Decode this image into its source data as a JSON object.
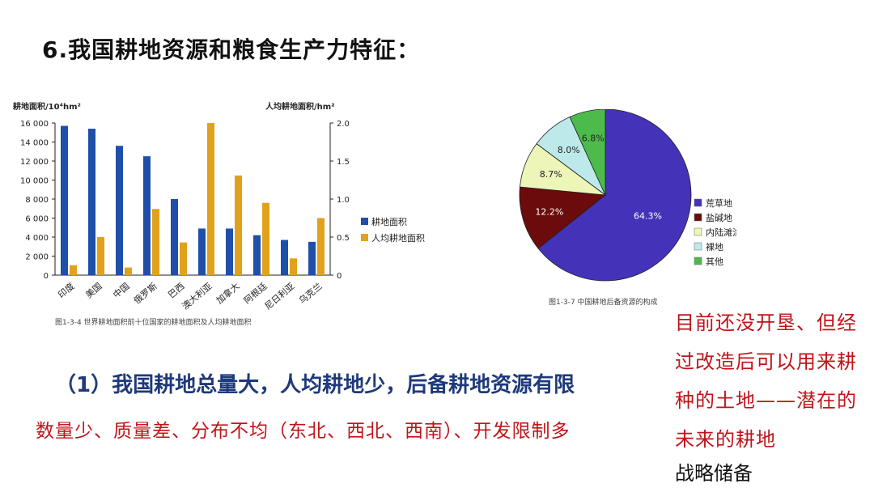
{
  "title": "6.我国耕地资源和粮食生产力特征：",
  "point1": "（1）我国耕地总量大，人均耕地少，后备耕地资源有限",
  "point1_detail": "数量少、质量差、分布不均（东北、西北、西南）、开发限制多",
  "side_note": "目前还没开垦、但经过改造后可以用来耕种的土地——潜在的未来的耕地",
  "side_note_sub": "战略储备",
  "colors": {
    "bar_area": "#1f4fa8",
    "bar_per_capita": "#e0a21c",
    "pie_wasteland": "#4433b8",
    "pie_saline": "#6b0b0b",
    "pie_inland": "#eef5b8",
    "pie_bare": "#bde9ea",
    "pie_other": "#4cbb4c",
    "red_text": "#c0141a",
    "blue_text": "#1f3a7a"
  },
  "chart_data": [
    {
      "type": "bar",
      "caption": "图1-3-4  世界耕地面积前十位国家的耕地面积及人均耕地面积",
      "ylabel": "耕地面积/10⁴hm²",
      "y2label": "人均耕地面积/hm²",
      "ylim": [
        0,
        16000
      ],
      "y2lim": [
        0,
        2.0
      ],
      "yticks": [
        "0",
        "2 000",
        "4 000",
        "6 000",
        "8 000",
        "10 000",
        "12 000",
        "14 000",
        "16 000"
      ],
      "y2ticks": [
        "0",
        "0.5",
        "1.0",
        "1.5",
        "2.0"
      ],
      "categories": [
        "印度",
        "美国",
        "中国",
        "俄罗斯",
        "巴西",
        "澳大利亚",
        "加拿大",
        "阿根廷",
        "尼日利亚",
        "乌克兰"
      ],
      "series": [
        {
          "name": "耕地面积",
          "axis": "left",
          "values": [
            15700,
            15400,
            13600,
            12500,
            8000,
            4900,
            4900,
            4200,
            3700,
            3500
          ]
        },
        {
          "name": "人均耕地面积",
          "axis": "right",
          "values": [
            0.13,
            0.5,
            0.1,
            0.87,
            0.43,
            2.0,
            1.31,
            0.95,
            0.22,
            0.75
          ]
        }
      ],
      "grid": false,
      "legend": "right"
    },
    {
      "type": "pie",
      "caption": "图1-3-7  中国耕地后备资源的构成",
      "labels": [
        "荒草地",
        "盐碱地",
        "内陆滩涂",
        "裸地",
        "其他"
      ],
      "values": [
        64.3,
        12.2,
        8.7,
        8.0,
        6.8
      ],
      "value_labels": [
        "64.3%",
        "12.2%",
        "8.7%",
        "8.0%",
        "6.8%"
      ],
      "legend": "right"
    }
  ]
}
